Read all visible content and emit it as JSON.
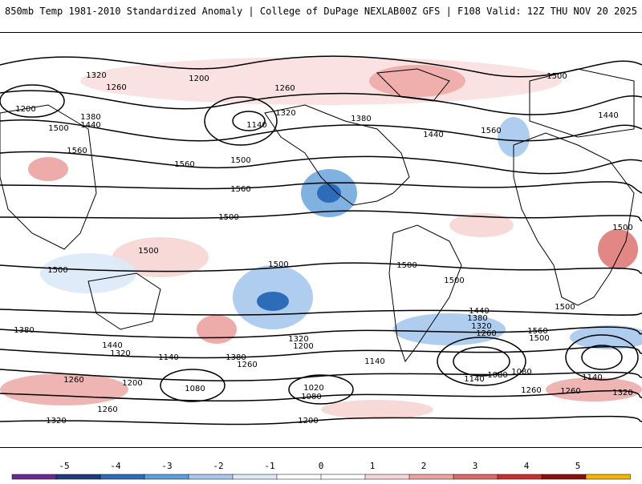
{
  "header": {
    "title": "850mb Temp 1981-2010 Standardized Anomaly | College of DuPage NEXLAB",
    "run_info": "00Z GFS | F108 Valid: 12Z THU NOV 20 2025"
  },
  "contour_labels": [
    "1320",
    "1260",
    "1200",
    "1200",
    "1260",
    "1320",
    "1380",
    "1440",
    "1500",
    "1560",
    "1380",
    "1440",
    "1500",
    "1560",
    "1500",
    "1500",
    "1500",
    "1500",
    "1560",
    "1500",
    "1560",
    "1500",
    "1500",
    "1500",
    "1440",
    "1380",
    "1320",
    "1260",
    "1560",
    "1500",
    "1380",
    "1440",
    "1320",
    "1260",
    "1200",
    "1140",
    "1140",
    "1080",
    "1140",
    "1080",
    "1020",
    "1080",
    "1140",
    "1200",
    "1260",
    "1320",
    "1380",
    "1200",
    "1260",
    "1320",
    "1080",
    "1140",
    "1260",
    "1260",
    "1320",
    "1440",
    "1500"
  ],
  "colorbar": {
    "ticks": [
      "-5",
      "-4",
      "-3",
      "-2",
      "-1",
      "0",
      "1",
      "2",
      "3",
      "4",
      "5"
    ],
    "colors": [
      "#6a2b91",
      "#1f3c7a",
      "#2d6cb8",
      "#5f9fd8",
      "#a6c8ec",
      "#dce9f7",
      "#ffffff",
      "#ffffff",
      "#f6d6d4",
      "#eba3a0",
      "#d96a68",
      "#c73030",
      "#8b0f0f",
      "#f4b400"
    ]
  }
}
